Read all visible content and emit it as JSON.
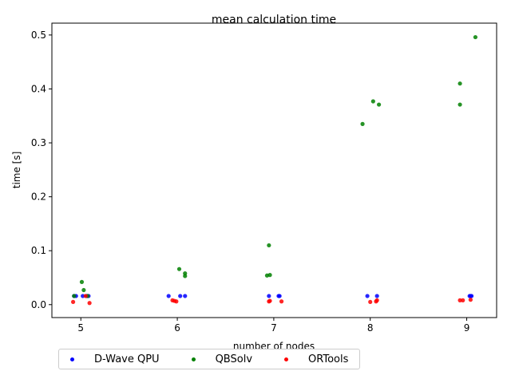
{
  "chart_data": {
    "type": "scatter",
    "title": "mean calculation time",
    "xlabel": "number of nodes",
    "ylabel": "time [s]",
    "xlim": [
      4.7,
      9.31
    ],
    "ylim": [
      -0.024,
      0.522
    ],
    "xticks": [
      5,
      6,
      7,
      8,
      9
    ],
    "xtick_labels": [
      "5",
      "6",
      "7",
      "8",
      "9"
    ],
    "yticks": [
      0.0,
      0.1,
      0.2,
      0.3,
      0.4,
      0.5
    ],
    "ytick_labels": [
      "0.0",
      "0.1",
      "0.2",
      "0.3",
      "0.4",
      "0.5"
    ],
    "grid": false,
    "legend_placement": "below",
    "series": [
      {
        "name": "D-Wave QPU",
        "color": "#0000ff",
        "points": [
          [
            4.93,
            0.016
          ],
          [
            4.95,
            0.016
          ],
          [
            5.02,
            0.016
          ],
          [
            5.06,
            0.016
          ],
          [
            5.08,
            0.016
          ],
          [
            5.91,
            0.016
          ],
          [
            6.03,
            0.016
          ],
          [
            6.08,
            0.016
          ],
          [
            6.95,
            0.016
          ],
          [
            7.05,
            0.016
          ],
          [
            7.06,
            0.016
          ],
          [
            7.97,
            0.016
          ],
          [
            8.07,
            0.016
          ],
          [
            9.03,
            0.016
          ],
          [
            9.05,
            0.016
          ],
          [
            9.04,
            0.016
          ]
        ]
      },
      {
        "name": "QBSolv",
        "color": "#008000",
        "points": [
          [
            4.93,
            0.016
          ],
          [
            5.01,
            0.042
          ],
          [
            5.03,
            0.027
          ],
          [
            5.07,
            0.016
          ],
          [
            6.02,
            0.066
          ],
          [
            6.08,
            0.058
          ],
          [
            6.08,
            0.053
          ],
          [
            6.93,
            0.054
          ],
          [
            6.96,
            0.055
          ],
          [
            6.95,
            0.11
          ],
          [
            7.92,
            0.335
          ],
          [
            8.03,
            0.377
          ],
          [
            8.09,
            0.371
          ],
          [
            8.93,
            0.41
          ],
          [
            8.93,
            0.371
          ],
          [
            9.09,
            0.496
          ]
        ]
      },
      {
        "name": "ORTools",
        "color": "#ff0000",
        "points": [
          [
            4.92,
            0.005
          ],
          [
            5.09,
            0.003
          ],
          [
            5.05,
            0.016
          ],
          [
            5.95,
            0.008
          ],
          [
            5.97,
            0.007
          ],
          [
            5.99,
            0.006
          ],
          [
            6.96,
            0.007
          ],
          [
            6.95,
            0.006
          ],
          [
            7.08,
            0.006
          ],
          [
            8.0,
            0.005
          ],
          [
            8.06,
            0.006
          ],
          [
            8.07,
            0.008
          ],
          [
            8.93,
            0.008
          ],
          [
            8.96,
            0.008
          ],
          [
            9.04,
            0.009
          ]
        ]
      }
    ]
  }
}
